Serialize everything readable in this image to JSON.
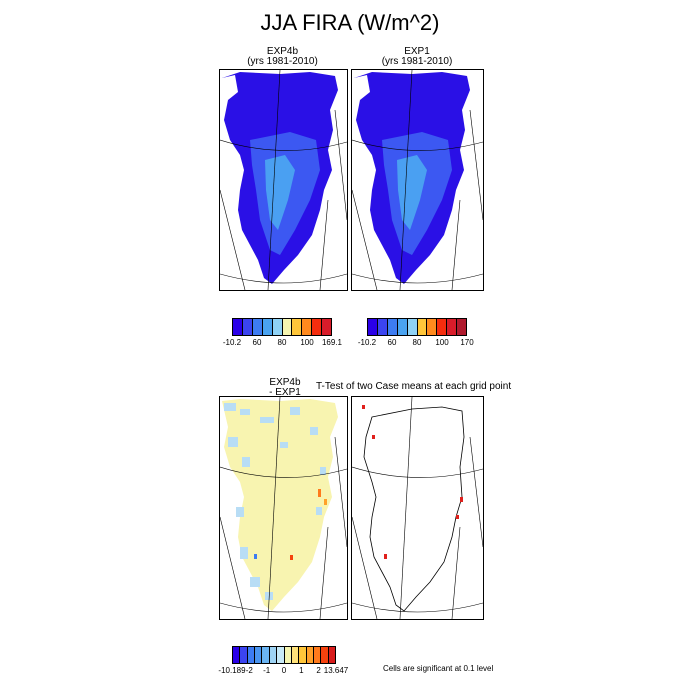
{
  "title": "JJA FIRA (W/m^2)",
  "panels": {
    "exp4b": {
      "title_line1": "EXP4b",
      "title_line2": "(yrs 1981-2010)"
    },
    "exp1": {
      "title_line1": "EXP1",
      "title_line2": "(yrs 1981-2010)"
    },
    "diff": {
      "title_line1": "EXP4b",
      "title_line2": "- EXP1"
    },
    "ttest": {
      "title": "T-Test of two Case means at each grid point"
    }
  },
  "colorbars": {
    "exp4b": {
      "colors": [
        "#2a00e8",
        "#3b44f0",
        "#3d7cf2",
        "#4aa3f0",
        "#8fd2f5",
        "#f5f5b0",
        "#ffc63a",
        "#ff8a1e",
        "#f52d0e",
        "#d81c2a"
      ],
      "labels": [
        "-10.2",
        "60",
        "80",
        "100",
        "169.1"
      ]
    },
    "exp1": {
      "colors": [
        "#2a00e8",
        "#3b44f0",
        "#3d7cf2",
        "#4aa3f0",
        "#8fd2f5",
        "#ffc63a",
        "#ff8a1e",
        "#f52d0e",
        "#d81c2a",
        "#b01a2e"
      ],
      "labels": [
        "-10.2",
        "60",
        "80",
        "100",
        "170"
      ]
    },
    "diff": {
      "colors": [
        "#2a00e8",
        "#3b44f0",
        "#3d7cf2",
        "#4a95f0",
        "#6ab4f2",
        "#9ed4f5",
        "#c8eaf8",
        "#f5f5b0",
        "#ffe27a",
        "#ffc63a",
        "#ffa02a",
        "#ff7a1c",
        "#f5420e",
        "#d81c1c"
      ],
      "labels": [
        "-10.189",
        "-2",
        "-1",
        "0",
        "1",
        "2",
        "13.647"
      ]
    }
  },
  "significance_note": "Cells are significant at 0.1 level",
  "colors": {
    "deep_blue": "#2a10e6",
    "mid_blue": "#3c58f2",
    "light_blue": "#4aa0f2",
    "diff_yellow": "#f8f4b0",
    "diff_lightblue": "#b8ddf5"
  }
}
